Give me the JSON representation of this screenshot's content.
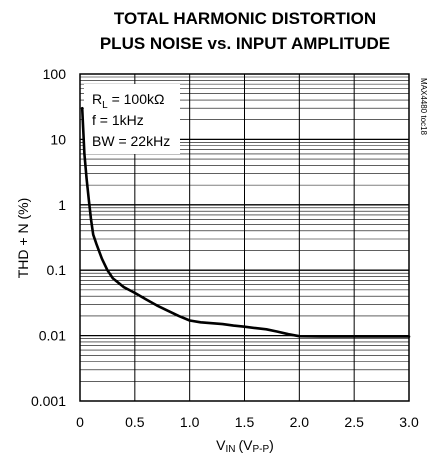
{
  "chart_data": {
    "type": "line",
    "title_lines": [
      "TOTAL HARMONIC DISTORTION",
      "PLUS NOISE vs. INPUT AMPLITUDE"
    ],
    "xlabel": {
      "main": "V",
      "sub": "IN",
      "unit_main": "(V",
      "unit_sub": "P-P",
      "unit_close": ")"
    },
    "ylabel": "THD + N (%)",
    "xlim": [
      0,
      3.0
    ],
    "ylim": [
      0.001,
      100
    ],
    "y_scale": "log",
    "x_ticks": [
      "0",
      "0.5",
      "1.0",
      "1.5",
      "2.0",
      "2.5",
      "3.0"
    ],
    "y_ticks": [
      "100",
      "10",
      "1",
      "0.1",
      "0.01",
      "0.001"
    ],
    "grid": true,
    "annotations": {
      "rl": {
        "main": "R",
        "sub": "L",
        "rest": " = 100kΩ"
      },
      "f": "f = 1kHz",
      "bw": "BW = 22kHz"
    },
    "figure_id": "MAX4480 toc18",
    "series": [
      {
        "x": [
          0.02,
          0.04,
          0.06,
          0.08,
          0.1,
          0.12,
          0.15,
          0.2,
          0.25,
          0.3,
          0.4,
          0.5,
          0.6,
          0.7,
          0.8,
          0.9,
          1.0,
          1.1,
          1.2,
          1.3,
          1.4,
          1.5,
          1.6,
          1.7,
          1.8,
          1.9,
          2.0,
          2.2,
          2.4,
          2.6,
          2.8,
          3.0
        ],
        "y": [
          30,
          6,
          2.5,
          1.2,
          0.6,
          0.35,
          0.25,
          0.15,
          0.1,
          0.075,
          0.055,
          0.045,
          0.036,
          0.029,
          0.024,
          0.02,
          0.017,
          0.016,
          0.0155,
          0.015,
          0.0142,
          0.0137,
          0.013,
          0.0125,
          0.0115,
          0.0105,
          0.0098,
          0.0097,
          0.0097,
          0.0097,
          0.0097,
          0.0097
        ]
      }
    ]
  }
}
